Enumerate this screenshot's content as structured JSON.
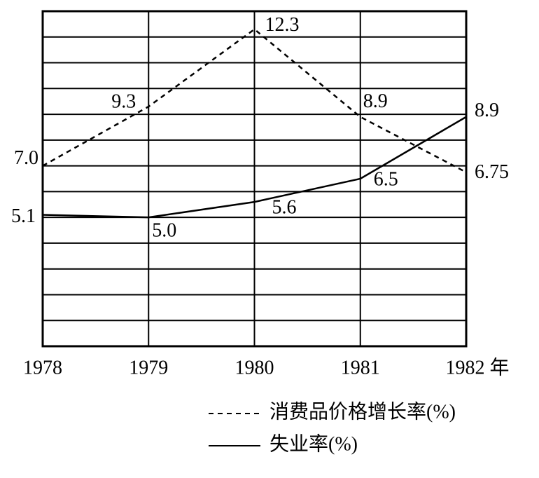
{
  "chart_data": {
    "type": "line",
    "x": [
      1978,
      1979,
      1980,
      1981,
      1982
    ],
    "xlim": [
      1978,
      1982
    ],
    "xticks": [
      1978,
      1979,
      1980,
      1981,
      {
        "value": 1982,
        "label": "1982 年"
      }
    ],
    "ylim": [
      0,
      13
    ],
    "yticks": [
      0,
      1,
      2,
      3,
      4,
      5,
      6,
      7,
      8,
      9,
      10,
      11,
      12,
      13
    ],
    "ytick_labels": false,
    "grid": true,
    "series": [
      {
        "name": "消费品价格增长率(%)",
        "color": "#000000",
        "dash": true,
        "values": [
          7.0,
          9.3,
          12.3,
          8.9,
          6.75
        ],
        "value_labels": [
          "7.0",
          "9.3",
          "12.3",
          "8.9",
          "6.75"
        ]
      },
      {
        "name": "失业率(%)",
        "color": "#000000",
        "dash": false,
        "values": [
          5.1,
          5.0,
          5.6,
          6.5,
          8.9
        ],
        "value_labels": [
          "5.1",
          "5.0",
          "5.6",
          "6.5",
          "8.9"
        ]
      }
    ]
  }
}
